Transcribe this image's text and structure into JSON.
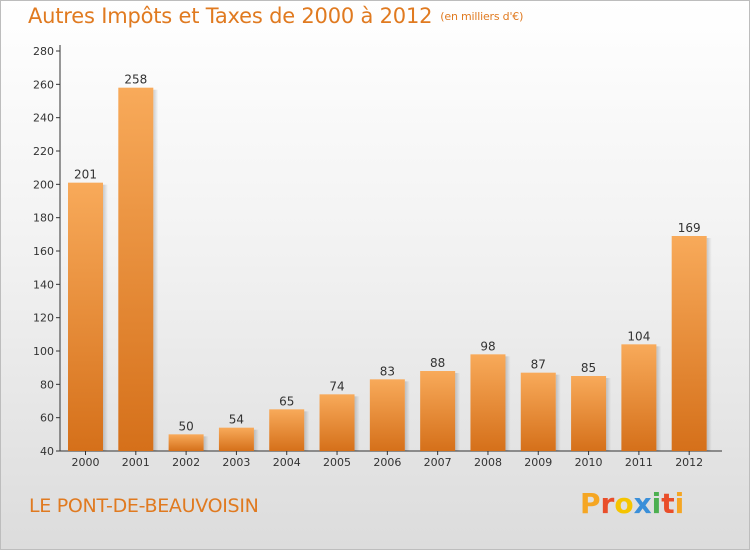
{
  "title": "Autres Impôts et Taxes de 2000 à 2012",
  "unit": "(en milliers d'€)",
  "location": "LE PONT-DE-BEAUVOISIN",
  "logo": "Proxiti",
  "colors": {
    "title": "#e07a20",
    "bar_top": "#f8aa5a",
    "bar_bottom": "#d5701a",
    "logo": [
      "#f5a623",
      "#e94e2a",
      "#f5c400",
      "#3a8fd9",
      "#4caf50",
      "#e94e2a",
      "#f5a623"
    ]
  },
  "chart_data": {
    "type": "bar",
    "categories": [
      "2000",
      "2001",
      "2002",
      "2003",
      "2004",
      "2005",
      "2006",
      "2007",
      "2008",
      "2009",
      "2010",
      "2011",
      "2012"
    ],
    "values": [
      201,
      258,
      50,
      54,
      65,
      74,
      83,
      88,
      98,
      87,
      85,
      104,
      169
    ],
    "ylim": [
      40,
      280
    ],
    "yticks": [
      40,
      60,
      80,
      100,
      120,
      140,
      160,
      180,
      200,
      220,
      240,
      260,
      280
    ],
    "grid": false,
    "data_labels": true
  }
}
